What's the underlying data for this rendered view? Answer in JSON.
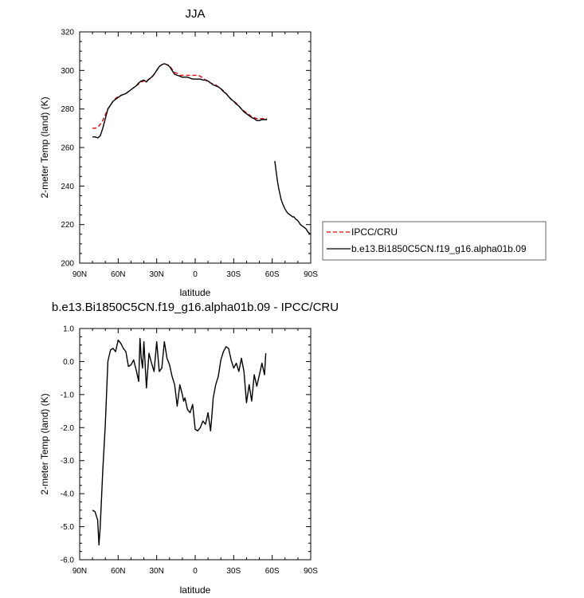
{
  "chart_data": [
    {
      "type": "line",
      "title": "JJA",
      "xlabel": "latitude",
      "ylabel": "2-meter Temp (land) (K)",
      "xlim": [
        90,
        -90
      ],
      "ylim": [
        200,
        320
      ],
      "x_ticks": [
        90,
        60,
        30,
        0,
        -30,
        -60,
        -90
      ],
      "x_tick_labels": [
        "90N",
        "60N",
        "30N",
        "0",
        "30S",
        "60S",
        "90S"
      ],
      "y_ticks": [
        200,
        220,
        240,
        260,
        280,
        300,
        320
      ],
      "y_tick_labels": [
        "200",
        "220",
        "240",
        "260",
        "280",
        "300",
        "320"
      ],
      "legend_position": "right",
      "series": [
        {
          "name": "IPCC/CRU",
          "color": "#e00000",
          "dash": "dashed",
          "x": [
            80,
            78,
            76,
            74,
            72,
            70,
            68,
            66,
            64,
            62,
            60,
            58,
            56,
            54,
            52,
            50,
            48,
            46,
            44,
            42,
            40,
            38,
            36,
            34,
            32,
            30,
            28,
            26,
            24,
            22,
            20,
            18,
            16,
            14,
            12,
            10,
            8,
            6,
            4,
            2,
            0,
            -2,
            -4,
            -6,
            -8,
            -10,
            -12,
            -14,
            -16,
            -18,
            -20,
            -22,
            -24,
            -26,
            -28,
            -30,
            -32,
            -34,
            -36,
            -38,
            -40,
            -42,
            -44,
            -46,
            -48,
            -50,
            -52,
            -54,
            -56
          ],
          "y": [
            270,
            270,
            270.5,
            272,
            274,
            277,
            280,
            282,
            284,
            285.5,
            286.5,
            287,
            287.5,
            288,
            289,
            290,
            291,
            292,
            293,
            294,
            294.5,
            294.5,
            295.5,
            296,
            298,
            300,
            302,
            303,
            303.5,
            303,
            302.5,
            300.5,
            299,
            298.5,
            297.5,
            297.5,
            297.5,
            297.5,
            297.5,
            297.5,
            297.5,
            297.5,
            297,
            296,
            295,
            294,
            293.5,
            293,
            292.5,
            291.5,
            290.5,
            289.5,
            288,
            286.5,
            285,
            284,
            283,
            281.5,
            280,
            279,
            278,
            277,
            276,
            275.5,
            275,
            275,
            275,
            275,
            275
          ]
        },
        {
          "name": "b.e13.Bi1850C5CN.f19_g16.alpha01b.09",
          "color": "#000000",
          "dash": "solid",
          "x": [
            80,
            78,
            76,
            74,
            72,
            70,
            68,
            66,
            64,
            62,
            60,
            58,
            56,
            54,
            52,
            50,
            48,
            46,
            44,
            42,
            40,
            38,
            36,
            34,
            32,
            30,
            28,
            26,
            24,
            22,
            20,
            18,
            16,
            14,
            12,
            10,
            8,
            6,
            4,
            2,
            0,
            -2,
            -4,
            -6,
            -8,
            -10,
            -12,
            -14,
            -16,
            -18,
            -20,
            -22,
            -24,
            -26,
            -28,
            -30,
            -32,
            -34,
            -36,
            -38,
            -40,
            -42,
            -44,
            -46,
            -48,
            -50,
            -52,
            -54,
            -56
          ],
          "y": [
            265.5,
            265.5,
            265,
            266,
            270,
            275,
            280,
            282,
            284,
            285,
            286,
            287,
            287.5,
            288,
            289,
            290,
            291,
            292,
            293.5,
            294.5,
            295,
            294,
            295.5,
            296.5,
            298,
            300,
            302,
            303,
            303.5,
            303,
            302,
            300,
            298,
            297.5,
            297,
            296.5,
            296.5,
            296.5,
            296,
            295.5,
            295.5,
            295.5,
            295.5,
            295,
            295,
            294.5,
            293.5,
            292.5,
            292,
            291.5,
            290.5,
            289,
            288,
            286.5,
            285,
            284,
            282.5,
            281.5,
            280,
            278.5,
            277.5,
            276.5,
            275.5,
            275,
            274,
            274,
            274.5,
            274.5,
            274.5
          ]
        },
        {
          "name": "",
          "color": "#000000",
          "dash": "solid",
          "x": [
            -62,
            -63,
            -64,
            -65,
            -66,
            -67,
            -68,
            -69,
            -70,
            -71,
            -72,
            -73,
            -74,
            -75,
            -76,
            -77,
            -78,
            -79,
            -80,
            -81,
            -82,
            -83,
            -84,
            -85,
            -86,
            -87,
            -88,
            -89,
            -90
          ],
          "y": [
            253,
            248,
            243,
            239,
            236,
            233,
            231,
            229.5,
            228,
            227,
            226,
            225.5,
            225,
            224.5,
            224,
            224,
            223,
            222.5,
            222,
            221,
            220,
            219.5,
            219,
            218.5,
            218,
            217,
            216,
            215.5,
            215
          ]
        }
      ]
    },
    {
      "type": "line",
      "title": "b.e13.Bi1850C5CN.f19_g16.alpha01b.09 - IPCC/CRU",
      "xlabel": "latitude",
      "ylabel": "2-meter Temp (land) (K)",
      "xlim": [
        90,
        -90
      ],
      "ylim": [
        -6,
        1
      ],
      "x_ticks": [
        90,
        60,
        30,
        0,
        -30,
        -60,
        -90
      ],
      "x_tick_labels": [
        "90N",
        "60N",
        "30N",
        "0",
        "30S",
        "60S",
        "90S"
      ],
      "y_ticks": [
        -6,
        -5,
        -4,
        -3,
        -2,
        -1,
        0,
        1
      ],
      "y_tick_labels": [
        "-6.0",
        "-5.0",
        "-4.0",
        "-3.0",
        "-2.0",
        "-1.0",
        "0.0",
        "1.0"
      ],
      "series": [
        {
          "name": "",
          "color": "#000000",
          "dash": "solid",
          "x": [
            80,
            78,
            76,
            75,
            74,
            72,
            70,
            68,
            66,
            64,
            62,
            60,
            58,
            56,
            54,
            52,
            50,
            48,
            46,
            44,
            43,
            42,
            41,
            40,
            38,
            36,
            34,
            32,
            30,
            28,
            27,
            26,
            24,
            22,
            20,
            18,
            16,
            14,
            12,
            10,
            9,
            8,
            6,
            4,
            2,
            0,
            -2,
            -4,
            -6,
            -8,
            -10,
            -12,
            -13,
            -14,
            -16,
            -18,
            -20,
            -22,
            -24,
            -26,
            -28,
            -30,
            -32,
            -34,
            -36,
            -38,
            -40,
            -42,
            -44,
            -46,
            -48,
            -50,
            -52,
            -54,
            -55
          ],
          "y": [
            -4.5,
            -4.55,
            -4.8,
            -5.55,
            -5.0,
            -3.3,
            -1.9,
            0.0,
            0.35,
            0.4,
            0.3,
            0.65,
            0.55,
            0.4,
            0.3,
            -0.15,
            -0.1,
            0.05,
            -0.25,
            -0.6,
            0.7,
            0.1,
            -0.2,
            0.6,
            -0.8,
            0.25,
            -0.05,
            -0.3,
            0.6,
            -0.3,
            -0.25,
            -0.2,
            0.6,
            0.1,
            -0.1,
            -0.45,
            -0.7,
            -1.35,
            -0.7,
            -1.0,
            -1.2,
            -1.1,
            -1.45,
            -1.55,
            -1.3,
            -2.05,
            -2.1,
            -2.0,
            -1.8,
            -1.9,
            -1.55,
            -2.1,
            -1.65,
            -1.1,
            -0.7,
            -0.45,
            0.05,
            0.3,
            0.45,
            0.4,
            0.05,
            -0.2,
            -0.05,
            -0.3,
            0.1,
            -0.3,
            -1.25,
            -0.7,
            -1.2,
            -0.4,
            -0.75,
            -0.4,
            -0.05,
            -0.4,
            0.25
          ]
        }
      ]
    }
  ]
}
